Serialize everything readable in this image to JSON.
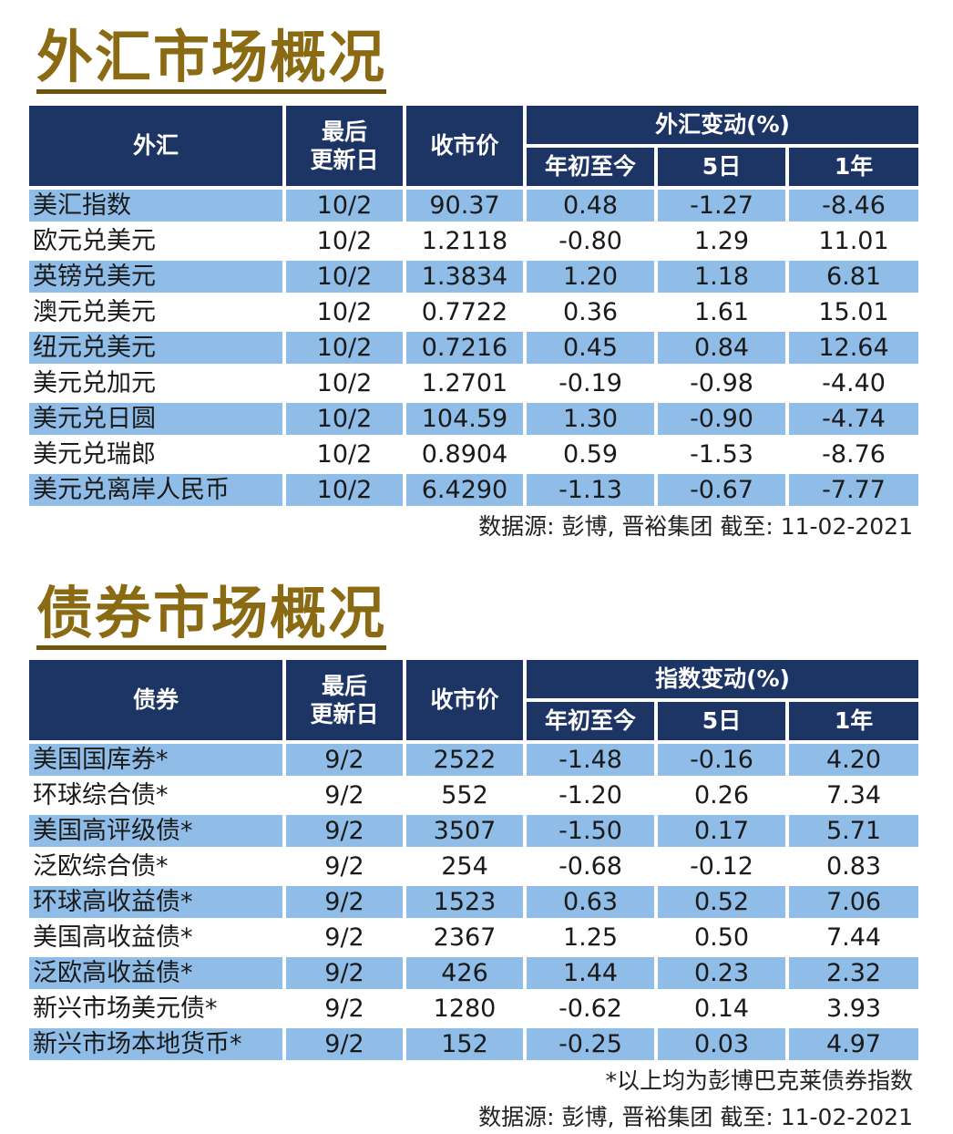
{
  "fx": {
    "title": "外汇市场概况",
    "headers": {
      "name": "外汇",
      "updated_line1": "最后",
      "updated_line2": "更新日",
      "close": "收市价",
      "change_group": "外汇变动(%)",
      "ytd": "年初至今",
      "d5": "5日",
      "y1": "1年"
    },
    "rows": [
      {
        "name": "美汇指数",
        "date": "10/2",
        "close": "90.37",
        "ytd": "0.48",
        "d5": "-1.27",
        "y1": "-8.46"
      },
      {
        "name": "欧元兑美元",
        "date": "10/2",
        "close": "1.2118",
        "ytd": "-0.80",
        "d5": "1.29",
        "y1": "11.01"
      },
      {
        "name": "英镑兑美元",
        "date": "10/2",
        "close": "1.3834",
        "ytd": "1.20",
        "d5": "1.18",
        "y1": "6.81"
      },
      {
        "name": "澳元兑美元",
        "date": "10/2",
        "close": "0.7722",
        "ytd": "0.36",
        "d5": "1.61",
        "y1": "15.01"
      },
      {
        "name": "纽元兑美元",
        "date": "10/2",
        "close": "0.7216",
        "ytd": "0.45",
        "d5": "0.84",
        "y1": "12.64"
      },
      {
        "name": "美元兑加元",
        "date": "10/2",
        "close": "1.2701",
        "ytd": "-0.19",
        "d5": "-0.98",
        "y1": "-4.40"
      },
      {
        "name": "美元兑日圆",
        "date": "10/2",
        "close": "104.59",
        "ytd": "1.30",
        "d5": "-0.90",
        "y1": "-4.74"
      },
      {
        "name": "美元兑瑞郎",
        "date": "10/2",
        "close": "0.8904",
        "ytd": "0.59",
        "d5": "-1.53",
        "y1": "-8.76"
      },
      {
        "name": "美元兑离岸人民币",
        "date": "10/2",
        "close": "6.4290",
        "ytd": "-1.13",
        "d5": "-0.67",
        "y1": "-7.77"
      }
    ],
    "source": "数据源: 彭博, 晋裕集团 截至: 11-02-2021"
  },
  "bonds": {
    "title": "债券市场概况",
    "headers": {
      "name": "债券",
      "updated_line1": "最后",
      "updated_line2": "更新日",
      "close": "收市价",
      "change_group": "指数变动(%)",
      "ytd": "年初至今",
      "d5": "5日",
      "y1": "1年"
    },
    "rows": [
      {
        "name": "美国国库券*",
        "date": "9/2",
        "close": "2522",
        "ytd": "-1.48",
        "d5": "-0.16",
        "y1": "4.20"
      },
      {
        "name": "环球综合债*",
        "date": "9/2",
        "close": "552",
        "ytd": "-1.20",
        "d5": "0.26",
        "y1": "7.34"
      },
      {
        "name": "美国高评级债*",
        "date": "9/2",
        "close": "3507",
        "ytd": "-1.50",
        "d5": "0.17",
        "y1": "5.71"
      },
      {
        "name": "泛欧综合债*",
        "date": "9/2",
        "close": "254",
        "ytd": "-0.68",
        "d5": "-0.12",
        "y1": "0.83"
      },
      {
        "name": "环球高收益债*",
        "date": "9/2",
        "close": "1523",
        "ytd": "0.63",
        "d5": "0.52",
        "y1": "7.06"
      },
      {
        "name": "美国高收益债*",
        "date": "9/2",
        "close": "2367",
        "ytd": "1.25",
        "d5": "0.50",
        "y1": "7.44"
      },
      {
        "name": "泛欧高收益债*",
        "date": "9/2",
        "close": "426",
        "ytd": "1.44",
        "d5": "0.23",
        "y1": "2.32"
      },
      {
        "name": "新兴市场美元债*",
        "date": "9/2",
        "close": "1280",
        "ytd": "-0.62",
        "d5": "0.14",
        "y1": "3.93"
      },
      {
        "name": "新兴市场本地货币*",
        "date": "9/2",
        "close": "152",
        "ytd": "-0.25",
        "d5": "0.03",
        "y1": "4.97"
      }
    ],
    "footnote": "*以上均为彭博巴克莱债券指数",
    "source": "数据源: 彭博, 晋裕集团 截至: 11-02-2021"
  },
  "colors": {
    "title": "#8a6a12",
    "header_bg": "#1d3564",
    "stripe": "#8fbde8"
  }
}
